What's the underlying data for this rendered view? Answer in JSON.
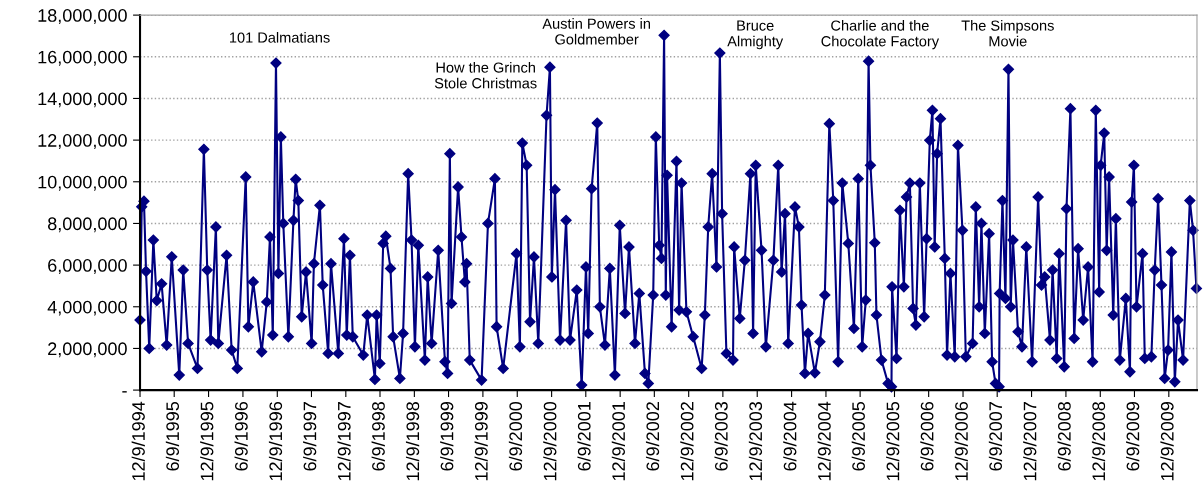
{
  "chart_data": {
    "type": "line",
    "x": [
      "1994-12-09",
      "1994-12-18",
      "1994-12-30",
      "1995-01-10",
      "1995-01-27",
      "1995-02-18",
      "1995-03-08",
      "1995-04-03",
      "1995-04-30",
      "1995-05-27",
      "1995-07-06",
      "1995-07-27",
      "1995-08-22",
      "1995-10-11",
      "1995-11-14",
      "1995-12-02",
      "1995-12-20",
      "1996-01-17",
      "1996-01-30",
      "1996-03-14",
      "1996-04-10",
      "1996-05-10",
      "1996-06-24",
      "1996-07-08",
      "1996-08-03",
      "1996-09-17",
      "1996-10-14",
      "1996-10-31",
      "1996-11-15",
      "1996-12-02",
      "1996-12-15",
      "1996-12-28",
      "1997-01-10",
      "1997-02-06",
      "1997-03-05",
      "1997-03-17",
      "1997-03-31",
      "1997-04-18",
      "1997-05-11",
      "1997-06-10",
      "1997-06-22",
      "1997-07-24",
      "1997-08-08",
      "1997-09-06",
      "1997-09-21",
      "1997-10-30",
      "1997-11-29",
      "1997-12-14",
      "1997-12-31",
      "1998-01-15",
      "1998-03-12",
      "1998-04-02",
      "1998-05-13",
      "1998-05-22",
      "1998-06-08",
      "1998-06-26",
      "1998-07-10",
      "1998-08-04",
      "1998-08-18",
      "1998-09-23",
      "1998-10-10",
      "1998-11-06",
      "1998-11-24",
      "1998-12-12",
      "1998-12-30",
      "1999-02-03",
      "1999-02-18",
      "1999-03-11",
      "1999-04-15",
      "1999-05-21",
      "1999-06-04",
      "1999-06-16",
      "1999-06-25",
      "1999-07-30",
      "1999-08-17",
      "1999-09-04",
      "1999-09-13",
      "1999-09-30",
      "1999-12-02",
      "2000-01-05",
      "2000-02-11",
      "2000-02-20",
      "2000-03-26",
      "2000-06-05",
      "2000-06-23",
      "2000-07-06",
      "2000-07-29",
      "2000-08-16",
      "2000-09-06",
      "2000-09-29",
      "2000-11-12",
      "2000-11-30",
      "2000-12-10",
      "2000-12-27",
      "2001-01-23",
      "2001-02-24",
      "2001-03-17",
      "2001-04-22",
      "2001-05-18",
      "2001-06-10",
      "2001-06-22",
      "2001-07-10",
      "2001-08-09",
      "2001-08-23",
      "2001-09-19",
      "2001-10-15",
      "2001-11-11",
      "2001-12-07",
      "2002-01-04",
      "2002-01-25",
      "2002-02-26",
      "2002-03-21",
      "2002-04-20",
      "2002-05-08",
      "2002-06-03",
      "2002-06-17",
      "2002-07-05",
      "2002-07-17",
      "2002-07-31",
      "2002-08-09",
      "2002-08-16",
      "2002-09-09",
      "2002-10-05",
      "2002-10-19",
      "2002-11-01",
      "2002-11-27",
      "2003-01-02",
      "2003-02-16",
      "2003-03-05",
      "2003-03-23",
      "2003-04-13",
      "2003-05-06",
      "2003-05-24",
      "2003-06-05",
      "2003-06-28",
      "2003-08-02",
      "2003-08-08",
      "2003-09-07",
      "2003-10-04",
      "2003-11-03",
      "2003-11-17",
      "2003-12-01",
      "2004-01-01",
      "2004-01-24",
      "2004-03-04",
      "2004-03-30",
      "2004-04-17",
      "2004-05-05",
      "2004-05-22",
      "2004-06-27",
      "2004-07-18",
      "2004-08-01",
      "2004-08-19",
      "2004-09-05",
      "2004-10-11",
      "2004-11-07",
      "2004-12-03",
      "2004-12-27",
      "2005-01-17",
      "2005-02-12",
      "2005-03-06",
      "2005-04-07",
      "2005-05-07",
      "2005-05-30",
      "2005-06-20",
      "2005-07-09",
      "2005-07-24",
      "2005-08-03",
      "2005-08-26",
      "2005-09-04",
      "2005-10-01",
      "2005-11-05",
      "2005-11-23",
      "2005-11-26",
      "2005-12-20",
      "2006-01-07",
      "2006-01-28",
      "2006-02-11",
      "2006-03-01",
      "2006-03-18",
      "2006-04-02",
      "2006-04-23",
      "2006-05-16",
      "2006-05-29",
      "2006-06-15",
      "2006-06-29",
      "2006-07-11",
      "2006-07-24",
      "2006-08-11",
      "2006-09-03",
      "2006-09-15",
      "2006-10-03",
      "2006-10-26",
      "2006-11-12",
      "2006-12-06",
      "2006-12-24",
      "2007-01-29",
      "2007-02-15",
      "2007-03-05",
      "2007-03-17",
      "2007-04-04",
      "2007-04-27",
      "2007-05-13",
      "2007-05-31",
      "2007-06-19",
      "2007-06-22",
      "2007-07-07",
      "2007-07-23",
      "2007-08-08",
      "2007-08-20",
      "2007-09-01",
      "2007-09-28",
      "2007-10-19",
      "2007-11-11",
      "2007-12-12",
      "2008-01-13",
      "2008-01-31",
      "2008-02-17",
      "2008-03-16",
      "2008-03-30",
      "2008-04-21",
      "2008-05-04",
      "2008-05-31",
      "2008-06-12",
      "2008-07-03",
      "2008-07-23",
      "2008-08-13",
      "2008-09-09",
      "2008-10-05",
      "2008-10-29",
      "2008-11-15",
      "2008-12-03",
      "2008-12-11",
      "2008-12-30",
      "2009-01-12",
      "2009-01-25",
      "2009-02-16",
      "2009-03-02",
      "2009-03-23",
      "2009-04-24",
      "2009-05-16",
      "2009-05-25",
      "2009-06-06",
      "2009-06-20",
      "2009-07-22",
      "2009-08-03",
      "2009-09-07",
      "2009-09-25",
      "2009-10-13",
      "2009-10-31",
      "2009-11-17",
      "2009-12-05",
      "2009-12-23",
      "2010-01-10",
      "2010-01-27",
      "2010-02-23",
      "2010-03-31",
      "2010-04-17",
      "2010-05-05"
    ],
    "series": [
      {
        "color": "#000080",
        "values": [
          3360000,
          8800000,
          9070000,
          5700000,
          2000000,
          7200000,
          4300000,
          5100000,
          2160000,
          6400000,
          720000,
          5760000,
          2240000,
          1040000,
          11560000,
          5760000,
          2400000,
          7830000,
          2240000,
          6470000,
          1920000,
          1040000,
          10230000,
          3040000,
          5190000,
          1840000,
          4230000,
          7350000,
          2640000,
          15700000,
          5600000,
          12150000,
          8000000,
          2560000,
          8150000,
          10120000,
          9100000,
          3520000,
          5670000,
          2240000,
          6070000,
          8870000,
          5040000,
          1760000,
          6070000,
          1760000,
          7270000,
          2640000,
          6470000,
          2560000,
          1680000,
          3600000,
          510000,
          3600000,
          1280000,
          7040000,
          7390000,
          5840000,
          2560000,
          560000,
          2720000,
          10390000,
          7200000,
          2080000,
          6950000,
          1440000,
          5430000,
          2240000,
          6710000,
          1360000,
          800000,
          11350000,
          4160000,
          9750000,
          7350000,
          5190000,
          6070000,
          1440000,
          480000,
          8000000,
          10150000,
          3040000,
          1040000,
          6550000,
          2080000,
          11860000,
          10790000,
          3280000,
          6390000,
          2240000,
          13190000,
          15500000,
          5430000,
          9620000,
          2400000,
          8150000,
          2400000,
          4800000,
          240000,
          5910000,
          2720000,
          9670000,
          12820000,
          4000000,
          2160000,
          5840000,
          720000,
          7910000,
          3680000,
          6870000,
          2240000,
          4640000,
          800000,
          320000,
          4560000,
          12150000,
          6950000,
          6320000,
          17030000,
          4560000,
          10310000,
          3040000,
          10980000,
          3840000,
          9940000,
          3760000,
          2560000,
          1040000,
          3600000,
          7830000,
          10390000,
          5910000,
          16180000,
          8470000,
          1760000,
          1440000,
          6870000,
          3440000,
          6230000,
          10390000,
          2720000,
          10790000,
          6710000,
          2080000,
          6230000,
          10790000,
          5670000,
          8470000,
          2240000,
          8790000,
          7830000,
          4080000,
          800000,
          2720000,
          830000,
          2320000,
          4560000,
          12790000,
          9100000,
          1360000,
          9940000,
          7040000,
          2960000,
          10150000,
          2080000,
          4320000,
          15790000,
          10790000,
          7070000,
          3600000,
          1440000,
          320000,
          160000,
          4960000,
          1520000,
          8630000,
          4960000,
          9270000,
          9940000,
          3920000,
          3120000,
          9940000,
          3520000,
          7270000,
          11990000,
          13430000,
          6870000,
          11350000,
          13030000,
          6320000,
          1680000,
          5600000,
          1600000,
          11750000,
          7670000,
          1600000,
          2240000,
          8790000,
          4000000,
          8000000,
          2720000,
          7510000,
          1360000,
          320000,
          160000,
          4640000,
          9100000,
          4400000,
          15400000,
          4000000,
          7200000,
          2800000,
          2080000,
          6870000,
          1360000,
          9270000,
          5040000,
          5430000,
          2400000,
          5760000,
          1520000,
          6550000,
          1120000,
          8710000,
          13510000,
          2480000,
          6790000,
          3360000,
          5910000,
          1360000,
          13430000,
          4710000,
          10790000,
          12340000,
          6710000,
          10230000,
          3600000,
          8230000,
          1440000,
          4400000,
          880000,
          9030000,
          10790000,
          4000000,
          6550000,
          1520000,
          1600000,
          5760000,
          9190000,
          5040000,
          560000,
          1920000,
          6630000,
          400000,
          3360000,
          1440000,
          9100000,
          7670000,
          4880000
        ]
      }
    ],
    "xlim": [
      "1994-12-09",
      "2010-05-08"
    ],
    "xticks": [
      {
        "value": "1994-12-09",
        "label": "12/9/1994"
      },
      {
        "value": "1995-06-09",
        "label": "6/9/1995"
      },
      {
        "value": "1995-12-09",
        "label": "12/9/1995"
      },
      {
        "value": "1996-06-09",
        "label": "6/9/1996"
      },
      {
        "value": "1996-12-09",
        "label": "12/9/1996"
      },
      {
        "value": "1997-06-09",
        "label": "6/9/1997"
      },
      {
        "value": "1997-12-09",
        "label": "12/9/1997"
      },
      {
        "value": "1998-06-09",
        "label": "6/9/1998"
      },
      {
        "value": "1998-12-09",
        "label": "12/9/1998"
      },
      {
        "value": "1999-06-09",
        "label": "6/9/1999"
      },
      {
        "value": "1999-12-09",
        "label": "12/9/1999"
      },
      {
        "value": "2000-06-09",
        "label": "6/9/2000"
      },
      {
        "value": "2000-12-09",
        "label": "12/9/2000"
      },
      {
        "value": "2001-06-09",
        "label": "6/9/2001"
      },
      {
        "value": "2001-12-09",
        "label": "12/9/2001"
      },
      {
        "value": "2002-06-09",
        "label": "6/9/2002"
      },
      {
        "value": "2002-12-09",
        "label": "12/9/2002"
      },
      {
        "value": "2003-06-09",
        "label": "6/9/2003"
      },
      {
        "value": "2003-12-09",
        "label": "12/9/2003"
      },
      {
        "value": "2004-06-09",
        "label": "6/9/2004"
      },
      {
        "value": "2004-12-09",
        "label": "12/9/2004"
      },
      {
        "value": "2005-06-09",
        "label": "6/9/2005"
      },
      {
        "value": "2005-12-09",
        "label": "12/9/2005"
      },
      {
        "value": "2006-06-09",
        "label": "6/9/2006"
      },
      {
        "value": "2006-12-09",
        "label": "12/9/2006"
      },
      {
        "value": "2007-06-09",
        "label": "6/9/2007"
      },
      {
        "value": "2007-12-09",
        "label": "12/9/2007"
      },
      {
        "value": "2008-06-09",
        "label": "6/9/2008"
      },
      {
        "value": "2008-12-09",
        "label": "12/9/2008"
      },
      {
        "value": "2009-06-09",
        "label": "6/9/2009"
      },
      {
        "value": "2009-12-09",
        "label": "12/9/2009"
      }
    ],
    "ylim": [
      0,
      18000000
    ],
    "yticks": [
      {
        "value": 0,
        "label": "-"
      },
      {
        "value": 2000000,
        "label": "2,000,000"
      },
      {
        "value": 4000000,
        "label": "4,000,000"
      },
      {
        "value": 6000000,
        "label": "6,000,000"
      },
      {
        "value": 8000000,
        "label": "8,000,000"
      },
      {
        "value": 10000000,
        "label": "10,000,000"
      },
      {
        "value": 12000000,
        "label": "12,000,000"
      },
      {
        "value": 14000000,
        "label": "14,000,000"
      },
      {
        "value": 16000000,
        "label": "16,000,000"
      },
      {
        "value": 18000000,
        "label": "18,000,000"
      }
    ],
    "grid": "y",
    "marker": "diamond",
    "line_style": "solid",
    "annotations": [
      "101 Dalmatians",
      "How the Grinch\nStole Christmas",
      "Austin Powers in\nGoldmember",
      "Bruce\nAlmighty",
      "Charlie and the\nChocolate Factory",
      "The Simpsons\nMovie"
    ]
  }
}
